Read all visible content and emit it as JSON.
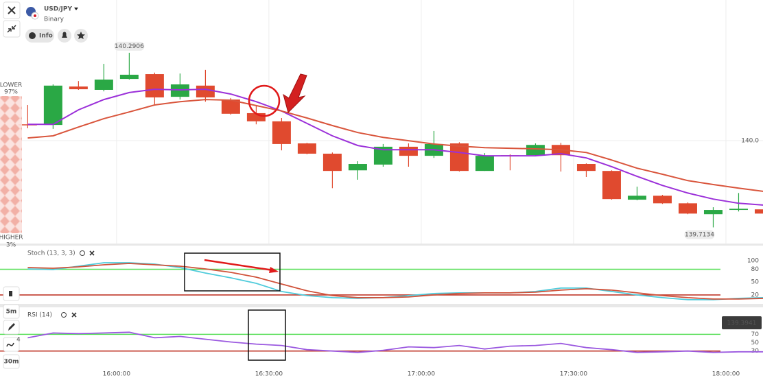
{
  "ui": {
    "symbol": "USD/JPY",
    "mode": "Binary",
    "info": "Info",
    "lower_label": "LOWER",
    "lower_pct": "97%",
    "higher_label": "HIGHER",
    "higher_pct": "3%",
    "timeframe_short": "5m",
    "timeframe_long": "30m",
    "indicator_count": "4",
    "price_tag": "139.3941"
  },
  "chart_data": [
    {
      "type": "candlestick",
      "x": [
        942.5,
        947.5,
        952.5,
        957.5,
        962.5,
        967.5,
        972.5,
        977.5,
        982.5,
        987.5,
        992.5,
        997.5,
        1002.5,
        1007.5,
        1012.5,
        1017.5,
        1022.5,
        1027.5,
        1032.5,
        1037.5,
        1042.5,
        1047.5,
        1052.5,
        1057.5,
        1062.5,
        1067.5,
        1072.5,
        1077.5,
        1082.5,
        1087.5
      ],
      "open": [
        140.054,
        140.052,
        140.179,
        140.168,
        140.204,
        140.22,
        140.145,
        140.182,
        140.136,
        140.091,
        140.064,
        139.991,
        139.957,
        139.902,
        139.921,
        139.98,
        139.95,
        139.991,
        139.9,
        139.952,
        139.952,
        139.986,
        139.923,
        139.9,
        139.805,
        139.818,
        139.793,
        139.757,
        139.771,
        139.773
      ],
      "high": [
        140.118,
        140.186,
        140.197,
        140.254,
        140.2906,
        140.225,
        140.222,
        140.234,
        140.141,
        140.114,
        140.075,
        139.993,
        139.961,
        139.932,
        139.989,
        139.991,
        140.032,
        139.995,
        139.959,
        139.955,
        139.991,
        139.993,
        139.925,
        139.902,
        139.848,
        139.821,
        139.796,
        139.78,
        139.827,
        139.775
      ],
      "low": [
        140.041,
        140.039,
        140.168,
        140.163,
        140.202,
        140.12,
        140.136,
        140.129,
        140.086,
        140.054,
        139.968,
        139.955,
        139.843,
        139.871,
        139.914,
        139.914,
        139.943,
        139.898,
        139.9,
        139.902,
        139.948,
        139.898,
        139.88,
        139.805,
        139.803,
        139.791,
        139.757,
        139.7134,
        139.766,
        139.759
      ],
      "close": [
        140.052,
        140.182,
        140.17,
        140.202,
        140.218,
        140.143,
        140.186,
        140.143,
        140.089,
        140.064,
        139.989,
        139.957,
        139.9,
        139.923,
        139.98,
        139.95,
        139.989,
        139.9,
        139.95,
        139.948,
        139.986,
        139.952,
        139.9,
        139.807,
        139.818,
        139.793,
        139.759,
        139.771,
        139.775,
        139.759
      ],
      "up_color": "#2aa845",
      "down_color": "#e04a2f",
      "overlays": [
        {
          "color": "#9b30d9",
          "values": [
            140.054,
            140.054,
            140.102,
            140.136,
            140.159,
            140.17,
            140.168,
            140.17,
            140.154,
            140.129,
            140.098,
            140.057,
            140.016,
            139.984,
            139.97,
            139.97,
            139.97,
            139.961,
            139.95,
            139.95,
            139.95,
            139.957,
            139.943,
            139.914,
            139.882,
            139.852,
            139.827,
            139.807,
            139.793,
            139.787
          ]
        },
        {
          "color": "#d9553c",
          "values": [
            140.009,
            140.016,
            140.045,
            140.073,
            140.095,
            140.118,
            140.129,
            140.136,
            140.134,
            140.116,
            140.098,
            140.075,
            140.05,
            140.027,
            140.011,
            140.0,
            139.989,
            139.982,
            139.977,
            139.975,
            139.973,
            139.97,
            139.961,
            139.936,
            139.909,
            139.889,
            139.868,
            139.855,
            139.843,
            139.832
          ]
        }
      ],
      "xlim": [
        941.1,
        1087.3
      ],
      "xticks": [
        {
          "value": 960,
          "label": "16:00:00"
        },
        {
          "value": 990,
          "label": "16:30:00"
        },
        {
          "value": 1020,
          "label": "17:00:00"
        },
        {
          "value": 1050,
          "label": "17:30:00"
        },
        {
          "value": 1080,
          "label": "18:00:00"
        }
      ],
      "ylim": [
        139.66,
        140.465
      ],
      "yticks": [
        {
          "value": 140,
          "label": "140.0"
        }
      ],
      "grid": true
    },
    {
      "type": "line",
      "title": "Stoch (13, 3, 3)",
      "x": [
        942.5,
        947.5,
        952.5,
        957.5,
        962.5,
        967.5,
        972.5,
        977.5,
        982.5,
        987.5,
        992.5,
        997.5,
        1002.5,
        1007.5,
        1012.5,
        1017.5,
        1022.5,
        1027.5,
        1032.5,
        1037.5,
        1042.5,
        1047.5,
        1052.5,
        1057.5,
        1062.5,
        1067.5,
        1072.5,
        1077.5,
        1082.5,
        1087.5
      ],
      "series": [
        {
          "color": "#4fcbdb",
          "values": [
            80.8,
            79.2,
            87.2,
            95.2,
            95.2,
            92,
            84,
            71.2,
            60,
            47.2,
            28,
            18.4,
            13.6,
            12,
            13.6,
            18.4,
            23.2,
            24.8,
            24.8,
            24.8,
            28,
            36,
            36,
            28,
            20,
            13.6,
            8.8,
            8.8,
            12,
            13.6
          ]
        },
        {
          "color": "#d0523a",
          "values": [
            84,
            82.4,
            85.6,
            90.4,
            93.6,
            90.4,
            87.2,
            80.8,
            72.8,
            61.6,
            45.6,
            29.6,
            18.4,
            13.6,
            13.6,
            15.2,
            20,
            23.2,
            24.8,
            24.8,
            26.4,
            31.2,
            34.4,
            31.2,
            24.8,
            18.4,
            13.6,
            10.4,
            10.4,
            12
          ]
        }
      ],
      "levels": [
        {
          "value": 80,
          "color": "#5ee05e"
        },
        {
          "value": 20,
          "color": "#c0392b"
        }
      ],
      "xlim": [
        941.1,
        1087.3
      ],
      "ylim": [
        -1,
        137
      ],
      "yticks": [
        100,
        80,
        50,
        20
      ]
    },
    {
      "type": "line",
      "title": "RSI (14)",
      "x": [
        942.5,
        947.5,
        952.5,
        957.5,
        962.5,
        967.5,
        972.5,
        977.5,
        982.5,
        987.5,
        992.5,
        997.5,
        1002.5,
        1007.5,
        1012.5,
        1017.5,
        1022.5,
        1027.5,
        1032.5,
        1037.5,
        1042.5,
        1047.5,
        1052.5,
        1057.5,
        1062.5,
        1067.5,
        1072.5,
        1077.5,
        1082.5,
        1087.5
      ],
      "series": [
        {
          "color": "#9b59e0",
          "values": [
            61.7,
            73.3,
            71.7,
            73.3,
            75,
            61.7,
            65,
            58.3,
            51.7,
            46.7,
            43.3,
            33.3,
            30,
            26.7,
            31.7,
            40,
            38.3,
            43.3,
            35,
            41.7,
            43.3,
            48.3,
            38.3,
            33.3,
            26.7,
            28.3,
            30,
            26.7,
            28.3,
            28.3
          ]
        }
      ],
      "levels": [
        {
          "value": 70,
          "color": "#5ee05e"
        },
        {
          "value": 30,
          "color": "#c0392b"
        }
      ],
      "xlim": [
        941.1,
        1087.3
      ],
      "ylim": [
        0,
        133
      ],
      "yticks": [
        70,
        50,
        30
      ]
    }
  ]
}
